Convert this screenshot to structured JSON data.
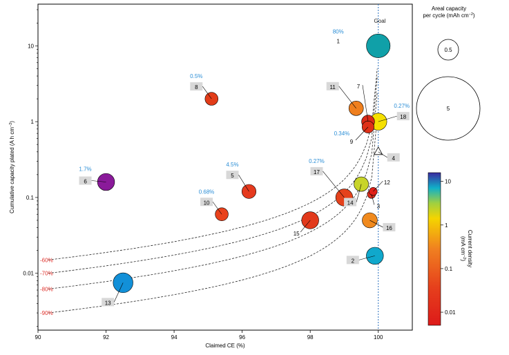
{
  "chart_data": {
    "type": "scatter",
    "xlabel": "Claimed CE (%)",
    "ylabel": "Cumulative capacity plated (A h cm",
    "ylabel_sup": "−2",
    "ylabel_close": ")",
    "xlim": [
      90,
      101
    ],
    "ylim_log10": [
      -2.75,
      1.55
    ],
    "x_ticks": [
      {
        "v": 90,
        "label": "90"
      },
      {
        "v": 92,
        "label": "92"
      },
      {
        "v": 94,
        "label": "94"
      },
      {
        "v": 96,
        "label": "96"
      },
      {
        "v": 98,
        "label": "98"
      },
      {
        "v": 100,
        "label": "100"
      }
    ],
    "y_ticks": [
      {
        "v": 10,
        "label": "10"
      },
      {
        "v": 1,
        "label": "1"
      },
      {
        "v": 0.1,
        "label": "0.1"
      },
      {
        "v": 0.01,
        "label": "0.01"
      }
    ],
    "goal_line_x": 100,
    "goal": {
      "x": 100,
      "y": 10,
      "size": 9.2,
      "color": "#10a0a8",
      "label": "Goal"
    },
    "points": [
      {
        "id": "1",
        "x": 100,
        "y": 10,
        "size": 9.2,
        "color": "#10a0a8",
        "pct": "80%",
        "boxed": false
      },
      {
        "id": "2",
        "x": 99.9,
        "y": 0.017,
        "size": 4.3,
        "color": "#10a8cc",
        "pct": "",
        "boxed": true
      },
      {
        "id": "3",
        "x": 99.8,
        "y": 0.11,
        "size": 0.6,
        "color": "#e03020",
        "pct": "",
        "boxed": false
      },
      {
        "id": "4",
        "x": 100,
        "y": 0.4,
        "size": 0.0,
        "color": "#ffffff",
        "pct": "",
        "boxed": true
      },
      {
        "id": "5",
        "x": 96.2,
        "y": 0.12,
        "size": 2.7,
        "color": "#e53a1e",
        "pct": "4.5%",
        "boxed": true
      },
      {
        "id": "6",
        "x": 92,
        "y": 0.16,
        "size": 4.3,
        "color": "#8a1a9a",
        "pct": "1.7%",
        "boxed": true
      },
      {
        "id": "7",
        "x": 99.7,
        "y": 1.0,
        "size": 2.2,
        "color": "#d92a18",
        "pct": "",
        "boxed": false
      },
      {
        "id": "8",
        "x": 95.1,
        "y": 2.0,
        "size": 2.2,
        "color": "#e23c18",
        "pct": "0.5%",
        "boxed": true
      },
      {
        "id": "9",
        "x": 99.7,
        "y": 0.85,
        "size": 1.8,
        "color": "#df3018",
        "pct": "0.34%",
        "boxed": false
      },
      {
        "id": "10",
        "x": 95.4,
        "y": 0.06,
        "size": 2.2,
        "color": "#e9421c",
        "pct": "0.68%",
        "boxed": true
      },
      {
        "id": "11",
        "x": 99.35,
        "y": 1.5,
        "size": 2.9,
        "color": "#ef7f1e",
        "pct": "",
        "boxed": true
      },
      {
        "id": "12",
        "x": 99.85,
        "y": 0.12,
        "size": 0.6,
        "color": "#e02018",
        "pct": "",
        "boxed": false
      },
      {
        "id": "13",
        "x": 92.5,
        "y": 0.0075,
        "size": 6.1,
        "color": "#1290d8",
        "pct": "",
        "boxed": true
      },
      {
        "id": "14",
        "x": 99.5,
        "y": 0.15,
        "size": 2.9,
        "color": "#c8d42a",
        "pct": "",
        "boxed": true
      },
      {
        "id": "15",
        "x": 98,
        "y": 0.05,
        "size": 4.3,
        "color": "#e23a1c",
        "pct": "",
        "boxed": false
      },
      {
        "id": "16",
        "x": 99.75,
        "y": 0.05,
        "size": 3.2,
        "color": "#f08a1e",
        "pct": "",
        "boxed": true
      },
      {
        "id": "17",
        "x": 99,
        "y": 0.1,
        "size": 4.3,
        "color": "#e5421c",
        "pct": "0.27%",
        "boxed": true
      },
      {
        "id": "18",
        "x": 100,
        "y": 1.0,
        "size": 4.3,
        "color": "#f5e000",
        "pct": "0.27%",
        "boxed": true
      }
    ],
    "iso_lines": [
      {
        "label": "60%",
        "ret": 0.6
      },
      {
        "label": "70%",
        "ret": 0.7
      },
      {
        "label": "80%",
        "ret": 0.8
      },
      {
        "label": "90%",
        "ret": 0.9
      }
    ],
    "size_legend": {
      "title_line1": "Areal capacity",
      "title_line2": "per cycle (mAh cm",
      "title_sup": "−2",
      "title_close": ")",
      "entries": [
        {
          "value": 0.5,
          "label": "0.5"
        },
        {
          "value": 5,
          "label": "5"
        }
      ]
    },
    "colorbar": {
      "label": "Current density",
      "unit": "(mA cm",
      "unit_sup": "−2",
      "unit_close": ")",
      "ticks": [
        {
          "v": 10,
          "label": "10"
        },
        {
          "v": 1,
          "label": "1"
        },
        {
          "v": 0.1,
          "label": "0.1"
        },
        {
          "v": 0.01,
          "label": "0.01"
        }
      ],
      "range_log10": [
        -2.3,
        1.2
      ]
    },
    "colors": {
      "pct_blue": "#2b8ed6",
      "iso_red": "#e0302a",
      "label_box": "#d8d8d8"
    }
  }
}
